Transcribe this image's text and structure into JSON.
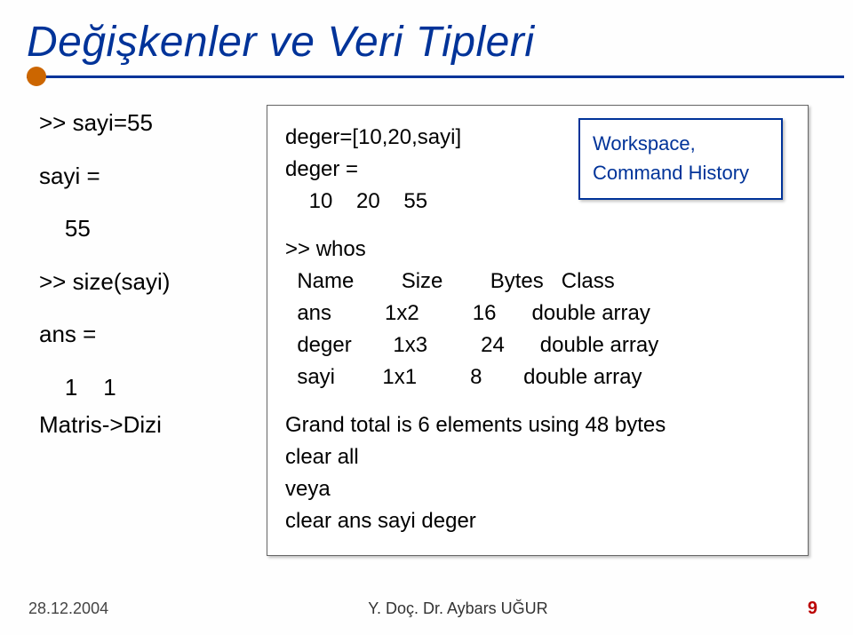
{
  "title": "Değişkenler ve Veri Tipleri",
  "left": {
    "l1": ">> sayi=55",
    "l2": "sayi =",
    "l3": "    55",
    "l4": ">> size(sayi)",
    "l5": "ans =",
    "l6": "    1    1",
    "l7": "Matris->Dizi"
  },
  "top": {
    "r1": "deger=[10,20,sayi]",
    "r2": "deger =",
    "r3": "    10    20    55"
  },
  "whos": {
    "w0": ">> whos",
    "header": {
      "name": "  Name",
      "size": "Size",
      "bytes": "Bytes",
      "class": "Class"
    },
    "rows": [
      {
        "name": "  ans",
        "size": "1x2",
        "bytes": "16",
        "class": "double array"
      },
      {
        "name": "  deger",
        "size": "1x3",
        "bytes": "24",
        "class": "double array"
      },
      {
        "name": "  sayi",
        "size": "1x1",
        "bytes": "8",
        "class": "double array"
      }
    ],
    "grand": "Grand total is 6 elements using 48 bytes",
    "c1": "clear all",
    "c2": "veya",
    "c3": "clear ans sayi deger"
  },
  "info": {
    "l1": "Workspace,",
    "l2": "Command History"
  },
  "footer": {
    "date": "28.12.2004",
    "author": "Y. Doç. Dr. Aybars UĞUR",
    "page": "9"
  },
  "style": {
    "title_color": "#003399",
    "accent_dot": "#cc6600",
    "page_num_color": "#b00000",
    "box_border": "#666666",
    "info_border": "#003399",
    "bg": "#fefefe"
  }
}
